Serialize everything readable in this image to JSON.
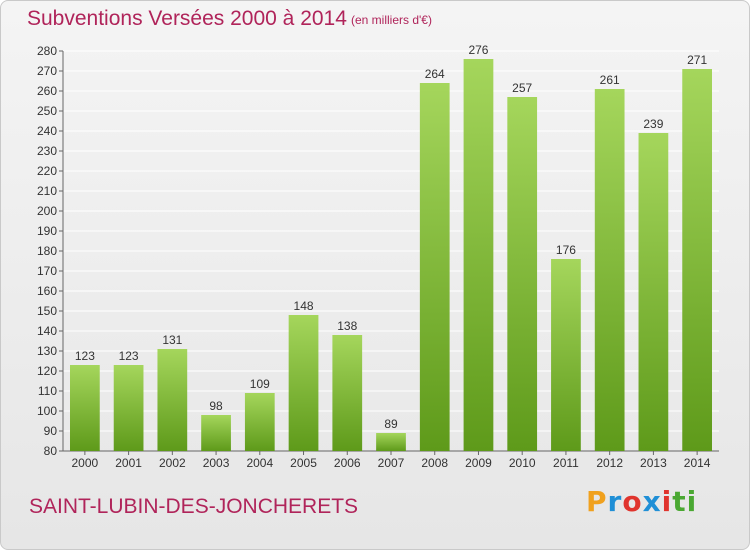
{
  "header": {
    "title": "Subventions Versées 2000 à 2014",
    "subtitle": "(en milliers d'€)"
  },
  "footer": {
    "commune": "SAINT-LUBIN-DES-JONCHERETS",
    "logo_text": "Proxiti"
  },
  "colors": {
    "bar_top": "#a5d65c",
    "bar_bottom": "#5e9a1a",
    "title": "#b0245a",
    "grid": "#ffffff"
  },
  "chart_data": {
    "type": "bar",
    "categories": [
      "2000",
      "2001",
      "2002",
      "2003",
      "2004",
      "2005",
      "2006",
      "2007",
      "2008",
      "2009",
      "2010",
      "2011",
      "2012",
      "2013",
      "2014"
    ],
    "values": [
      123,
      123,
      131,
      98,
      109,
      148,
      138,
      89,
      264,
      276,
      257,
      176,
      261,
      239,
      271
    ],
    "ylim": [
      80,
      280
    ],
    "ytick_step": 10,
    "grid": true,
    "legend": "none",
    "show_data_labels": true
  }
}
